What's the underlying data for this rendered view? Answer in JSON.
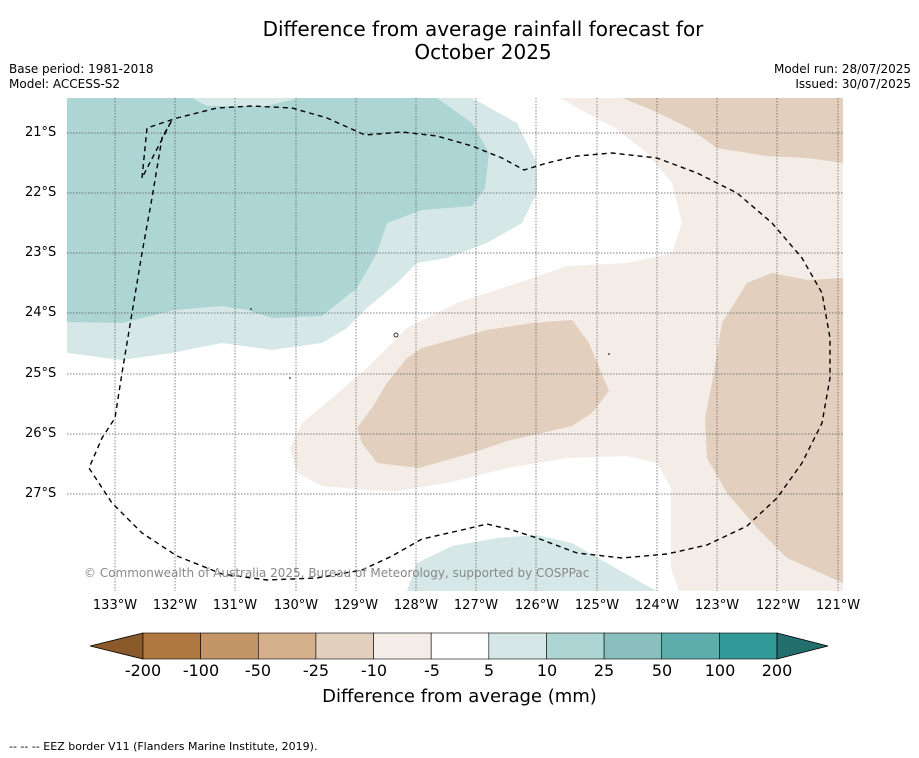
{
  "title_line1": "Difference from average rainfall forecast for",
  "title_line2": "October 2025",
  "base_period": "Base period: 1981-2018",
  "model": "Model: ACCESS-S2",
  "model_run": "Model run: 28/07/2025",
  "issued": "Issued: 30/07/2025",
  "lat_labels": [
    "21°S",
    "22°S",
    "23°S",
    "24°S",
    "25°S",
    "26°S",
    "27°S"
  ],
  "lon_labels": [
    "133°W",
    "132°W",
    "131°W",
    "130°W",
    "129°W",
    "128°W",
    "127°W",
    "126°W",
    "125°W",
    "124°W",
    "123°W",
    "122°W",
    "121°W"
  ],
  "copyright": "© Commonwealth of Australia 2025, Bureau of Meteorology, supported by COSPPac",
  "colorbar": {
    "ticks": [
      "-200",
      "-100",
      "-50",
      "-25",
      "-10",
      "-5",
      "5",
      "10",
      "25",
      "50",
      "100",
      "200"
    ],
    "colors": [
      "#ae7840",
      "#c49566",
      "#d5b08c",
      "#e2cfbd",
      "#f4ece7",
      "#ffffff",
      "#d5e8e7",
      "#acd5d4",
      "#89bfbd",
      "#5eadad",
      "#319a98"
    ],
    "under_color": "#8a5a2a",
    "over_color": "#226f6d",
    "label": "Difference from average (mm)"
  },
  "footer": "-- -- -- EEZ border V11 (Flanders Marine Institute, 2019)."
}
